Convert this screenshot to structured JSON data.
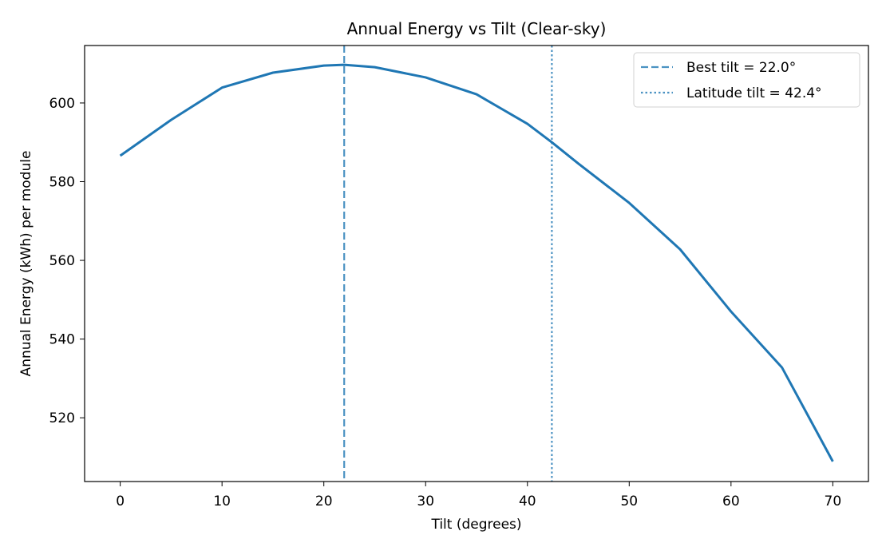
{
  "chart_data": {
    "type": "line",
    "title": "Annual Energy vs Tilt (Clear-sky)",
    "x_label": "Tilt (degrees)",
    "y_label": "Annual Energy (kWh) per module",
    "x": [
      0,
      5,
      10,
      15,
      20,
      22,
      25,
      30,
      35,
      40,
      42.4,
      45,
      50,
      55,
      60,
      65,
      70
    ],
    "series": [
      {
        "name": "Annual energy",
        "color": "#1f77b4",
        "values": [
          586.6,
          595.7,
          603.9,
          607.7,
          609.5,
          609.7,
          609.1,
          606.5,
          602.2,
          594.7,
          590.0,
          584.6,
          574.6,
          562.8,
          547.0,
          532.8,
          508.9
        ]
      }
    ],
    "vlines": [
      {
        "label": "Best tilt = 22.0°",
        "x": 22.0,
        "style": "dashed",
        "color": "#1f77b4"
      },
      {
        "label": "Latitude tilt = 42.4°",
        "x": 42.4,
        "style": "dotted",
        "color": "#1f77b4"
      }
    ],
    "xlim": [
      -3.5,
      73.5
    ],
    "ylim": [
      503.8,
      614.6
    ],
    "xticks": [
      0,
      10,
      20,
      30,
      40,
      50,
      60,
      70
    ],
    "yticks": [
      520,
      540,
      560,
      580,
      600
    ],
    "grid": false,
    "legend": "upper right"
  }
}
